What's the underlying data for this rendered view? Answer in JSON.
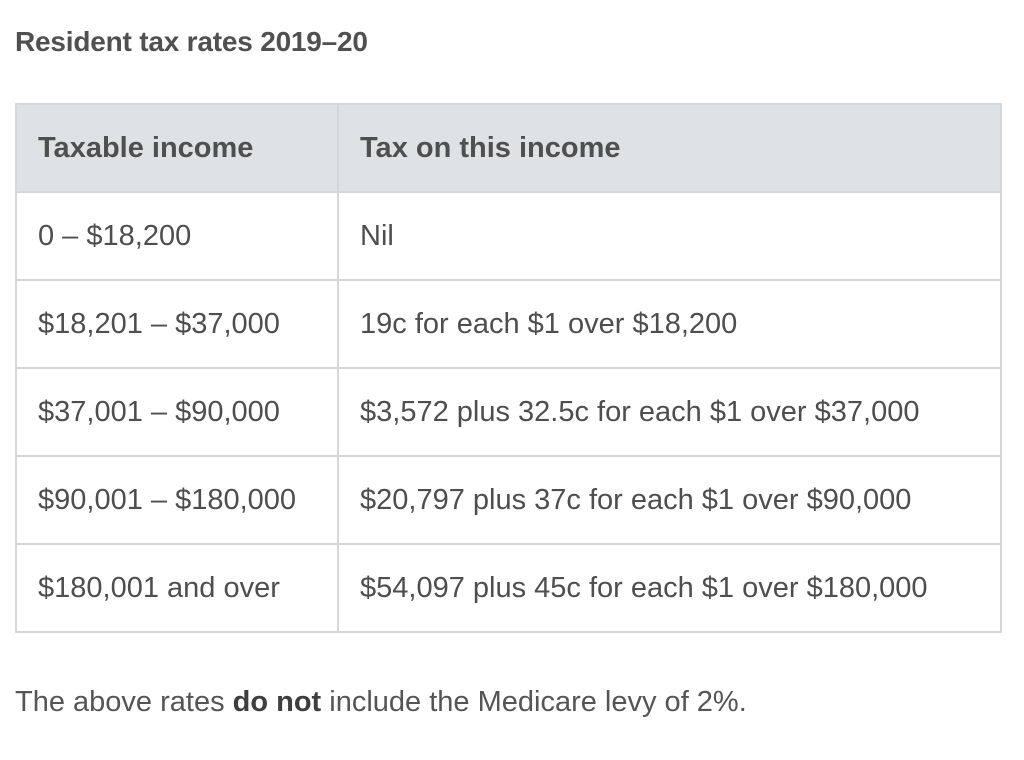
{
  "heading": "Resident tax rates 2019–20",
  "table": {
    "headers": [
      "Taxable income",
      "Tax on this income"
    ],
    "rows": [
      [
        "0 – $18,200",
        "Nil"
      ],
      [
        "$18,201 – $37,000",
        "19c for each $1 over $18,200"
      ],
      [
        "$37,001 – $90,000",
        "$3,572 plus 32.5c for each $1 over $37,000"
      ],
      [
        "$90,001 – $180,000",
        "$20,797 plus 37c for each $1 over $90,000"
      ],
      [
        "$180,001 and over",
        "$54,097 plus 45c for each $1 over $180,000"
      ]
    ]
  },
  "note": {
    "before": "The above rates ",
    "emphasis": "do not",
    "after": " include the Medicare levy of 2%."
  }
}
